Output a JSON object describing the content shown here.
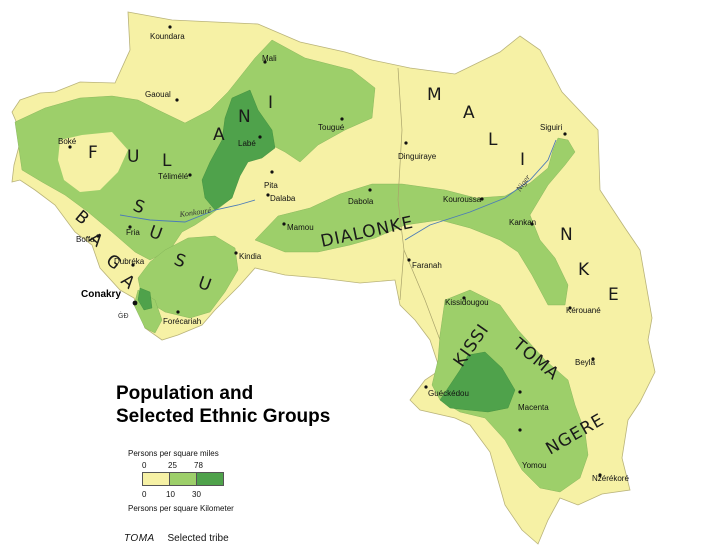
{
  "title": {
    "line1": "Population and",
    "line2": "Selected Ethnic Groups"
  },
  "legend": {
    "per_sq_mile_label": "Persons per square miles",
    "per_sq_mile_ticks": [
      "0",
      "25",
      "78"
    ],
    "per_sq_km_ticks": [
      "0",
      "10",
      "30"
    ],
    "per_sq_km_label": "Persons per square Kilometer",
    "colors": [
      "#f6f1a5",
      "#9dcf6a",
      "#4fa24b"
    ],
    "tribe_key_sample": "TOMA",
    "tribe_key_text": "Selected tribe"
  },
  "capital": "Conakry",
  "cities": [
    "Koundara",
    "Mali",
    "Gaoual",
    "Labé",
    "Tougué",
    "Siguiri",
    "Boké",
    "Télimélé",
    "Pita",
    "Dalaba",
    "Dinguiraye",
    "Fria",
    "Boffa",
    "Kindia",
    "Mamou",
    "Dabola",
    "Kouroussa",
    "Kankan",
    "Faranah",
    "Dubréka",
    "Forécariah",
    "Kissidougou",
    "Kérouané",
    "Guéckédou",
    "Macenta",
    "Beyla",
    "Yomou",
    "Nzérékoré"
  ],
  "tribes": {
    "fulani_letters": [
      "F",
      "U",
      "L",
      "A",
      "N",
      "I"
    ],
    "malinke_letters": [
      "M",
      "A",
      "L",
      "I",
      "N",
      "K",
      "E"
    ],
    "susu_letters": [
      "S",
      "U",
      "S",
      "U"
    ],
    "baga_letters": [
      "B",
      "A",
      "G",
      "A"
    ],
    "dialonke": "DIALONKE",
    "kissi": "KISSI",
    "toma": "TOMA",
    "ngere": "NGERE"
  },
  "rivers": [
    "Konkouré",
    "Niger"
  ],
  "ocean_mark": "ĠĐ"
}
